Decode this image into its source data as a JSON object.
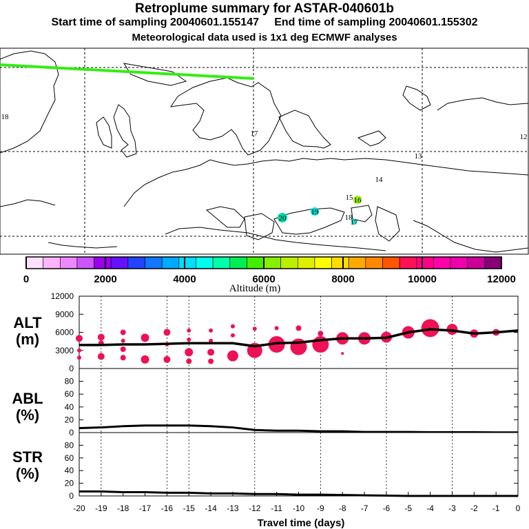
{
  "header": {
    "title": "Retroplume summary for ASTAR-040601b",
    "start_label": "Start time of sampling 20040601.155147",
    "end_label": "End time of sampling 20040601.155302",
    "met_label": "Meteorological data used is 1x1 deg ECMWF analyses"
  },
  "colors": {
    "track": "#33ee11",
    "bubble": "#ee1155",
    "line": "#000000",
    "palette": [
      "#ffe0ff",
      "#ffb4ff",
      "#ee88ff",
      "#cc55ff",
      "#9900ee",
      "#6611ff",
      "#2244ff",
      "#1177ff",
      "#00aaff",
      "#00ddff",
      "#00ffee",
      "#00ffaa",
      "#00ee55",
      "#44ee00",
      "#88ee00",
      "#bbee00",
      "#ddee00",
      "#ffff00",
      "#ffdd00",
      "#ffaa00",
      "#ff8800",
      "#ff5500",
      "#ff1155",
      "#ff0088",
      "#ff00aa",
      "#ee00aa",
      "#cc0099",
      "#880077"
    ]
  },
  "map": {
    "day_labels": [
      {
        "text": "18",
        "color": "#00ddaa"
      },
      {
        "text": "17",
        "color": "#88ee00"
      },
      {
        "text": "12",
        "color": "#88ee00"
      },
      {
        "text": "13",
        "color": "#ffee00"
      },
      {
        "text": "14",
        "color": "#bbee00"
      },
      {
        "text": "15",
        "color": "#99ee00"
      },
      {
        "text": "16",
        "color": "#99ee00"
      },
      {
        "text": "20",
        "color": "#00ddaa"
      },
      {
        "text": "19",
        "color": "#00ddcc"
      },
      {
        "text": "18",
        "color": "#00ddcc"
      },
      {
        "text": "17",
        "color": "#00ddcc"
      }
    ]
  },
  "colorbar": {
    "ticks": [
      "0",
      "2000",
      "4000",
      "6000",
      "8000",
      "10000",
      "12000"
    ],
    "label": "Altitude (m)"
  },
  "panels": {
    "alt": {
      "label1": "ALT",
      "label2": "(m)",
      "yticks": [
        "12000",
        "9000",
        "6000",
        "3000",
        "0"
      ]
    },
    "abl": {
      "label1": "ABL",
      "label2": "(%)",
      "yticks": [
        "80",
        "60",
        "40",
        "20",
        "0"
      ]
    },
    "str": {
      "label1": "STR",
      "label2": "(%)",
      "yticks": [
        "80",
        "60",
        "40",
        "20",
        "0"
      ]
    }
  },
  "chart_data": [
    {
      "type": "line",
      "title": "ALT",
      "xlabel": "Travel time (days)",
      "ylabel": "ALT (m)",
      "xlim": [
        -20,
        0
      ],
      "ylim": [
        0,
        12000
      ],
      "x_ticks": [
        "-20",
        "-19",
        "-18",
        "-17",
        "-16",
        "-15",
        "-14",
        "-13",
        "-12",
        "-11",
        "-10",
        "-9",
        "-8",
        "-7",
        "-6",
        "-5",
        "-4",
        "-3",
        "-2",
        "-1",
        "0"
      ],
      "mean_line": {
        "x": [
          -20,
          -19,
          -18,
          -17,
          -16,
          -15,
          -14,
          -13,
          -12,
          -11,
          -10,
          -9,
          -8,
          -7,
          -6,
          -5,
          -4,
          -3,
          -2,
          -1,
          0
        ],
        "y": [
          3900,
          3900,
          4000,
          4000,
          4100,
          4200,
          4200,
          4200,
          3700,
          4200,
          4300,
          4700,
          5000,
          5000,
          5100,
          6000,
          6500,
          6300,
          5800,
          6000,
          6300
        ]
      },
      "bubbles": [
        {
          "x": -20,
          "y": 5000,
          "r": 5
        },
        {
          "x": -20,
          "y": 3000,
          "r": 3
        },
        {
          "x": -20,
          "y": 1800,
          "r": 3
        },
        {
          "x": -19,
          "y": 5200,
          "r": 5
        },
        {
          "x": -19,
          "y": 4200,
          "r": 4
        },
        {
          "x": -19,
          "y": 2000,
          "r": 5
        },
        {
          "x": -18,
          "y": 6000,
          "r": 4
        },
        {
          "x": -18,
          "y": 4600,
          "r": 3
        },
        {
          "x": -18,
          "y": 3200,
          "r": 4
        },
        {
          "x": -18,
          "y": 1800,
          "r": 4
        },
        {
          "x": -17,
          "y": 5100,
          "r": 6
        },
        {
          "x": -17,
          "y": 1500,
          "r": 6
        },
        {
          "x": -16,
          "y": 6000,
          "r": 5
        },
        {
          "x": -16,
          "y": 4000,
          "r": 3
        },
        {
          "x": -16,
          "y": 1500,
          "r": 5
        },
        {
          "x": -15,
          "y": 6300,
          "r": 3
        },
        {
          "x": -15,
          "y": 4800,
          "r": 3
        },
        {
          "x": -15,
          "y": 2700,
          "r": 6
        },
        {
          "x": -15,
          "y": 1200,
          "r": 4
        },
        {
          "x": -14,
          "y": 6300,
          "r": 3
        },
        {
          "x": -14,
          "y": 4600,
          "r": 3
        },
        {
          "x": -14,
          "y": 2700,
          "r": 5
        },
        {
          "x": -14,
          "y": 1200,
          "r": 4
        },
        {
          "x": -13,
          "y": 7000,
          "r": 3
        },
        {
          "x": -13,
          "y": 5500,
          "r": 3
        },
        {
          "x": -13,
          "y": 2100,
          "r": 8
        },
        {
          "x": -12,
          "y": 6600,
          "r": 3
        },
        {
          "x": -12,
          "y": 3000,
          "r": 11
        },
        {
          "x": -11,
          "y": 6700,
          "r": 3
        },
        {
          "x": -11,
          "y": 4000,
          "r": 12
        },
        {
          "x": -10,
          "y": 6700,
          "r": 4
        },
        {
          "x": -10,
          "y": 3600,
          "r": 12
        },
        {
          "x": -9,
          "y": 5800,
          "r": 4
        },
        {
          "x": -9,
          "y": 4000,
          "r": 12
        },
        {
          "x": -8,
          "y": 5500,
          "r": 4
        },
        {
          "x": -8,
          "y": 5000,
          "r": 9
        },
        {
          "x": -8,
          "y": 2500,
          "r": 2
        },
        {
          "x": -7,
          "y": 5000,
          "r": 9
        },
        {
          "x": -6,
          "y": 5200,
          "r": 8
        },
        {
          "x": -5,
          "y": 6000,
          "r": 9
        },
        {
          "x": -4,
          "y": 6700,
          "r": 13
        },
        {
          "x": -3,
          "y": 6500,
          "r": 8
        },
        {
          "x": -2,
          "y": 5800,
          "r": 6
        },
        {
          "x": -1,
          "y": 6000,
          "r": 5
        }
      ]
    },
    {
      "type": "line",
      "title": "ABL",
      "xlabel": "Travel time (days)",
      "ylabel": "ABL (%)",
      "xlim": [
        -20,
        0
      ],
      "ylim": [
        0,
        100
      ],
      "x": [
        -20,
        -19,
        -18,
        -17,
        -16,
        -15,
        -14,
        -13,
        -12,
        -11,
        -10,
        -9,
        -8,
        -7,
        -6,
        -5,
        -4,
        -3,
        -2,
        -1,
        0
      ],
      "values": [
        7,
        8,
        10,
        11,
        11,
        11,
        10,
        8,
        4,
        3,
        3,
        2,
        2,
        1,
        1,
        1,
        0.5,
        0.5,
        0.5,
        0.3,
        0.3
      ]
    },
    {
      "type": "line",
      "title": "STR",
      "xlabel": "Travel time (days)",
      "ylabel": "STR (%)",
      "xlim": [
        -20,
        0
      ],
      "ylim": [
        0,
        100
      ],
      "x": [
        -20,
        -19,
        -18,
        -17,
        -16,
        -15,
        -14,
        -13,
        -12,
        -11,
        -10,
        -9,
        -8,
        -7,
        -6,
        -5,
        -4,
        -3,
        -2,
        -1,
        0
      ],
      "values": [
        7,
        7,
        6,
        6,
        5,
        5,
        4,
        4,
        3,
        3,
        2,
        2,
        1.5,
        1,
        0.5,
        0,
        0,
        0,
        0,
        0,
        0
      ]
    }
  ]
}
